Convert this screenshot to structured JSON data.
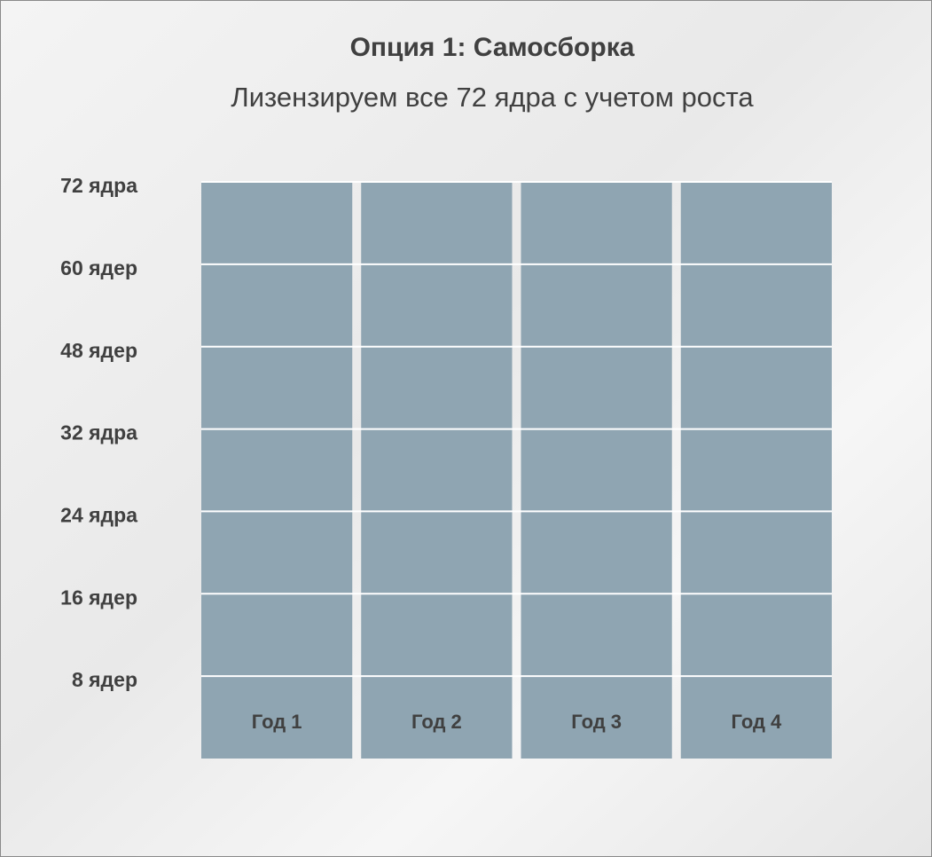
{
  "chart_data": {
    "type": "bar",
    "title": "Опция 1: Самосборка",
    "subtitle": "Лизензируем все 72 ядра с учетом роста",
    "categories": [
      "Год 1",
      "Год 2",
      "Год 3",
      "Год 4"
    ],
    "values": [
      72,
      72,
      72,
      72
    ],
    "color": "#8fa5b2",
    "ylim": [
      0,
      72
    ],
    "yticks": [
      {
        "value": 8,
        "label": "8 ядер"
      },
      {
        "value": 16,
        "label": "16 ядер"
      },
      {
        "value": 24,
        "label": "24 ядра"
      },
      {
        "value": 32,
        "label": "32 ядра"
      },
      {
        "value": 48,
        "label": "48 ядер"
      },
      {
        "value": 60,
        "label": "60 ядер"
      },
      {
        "value": 72,
        "label": "72 ядра"
      }
    ],
    "grid": true
  }
}
